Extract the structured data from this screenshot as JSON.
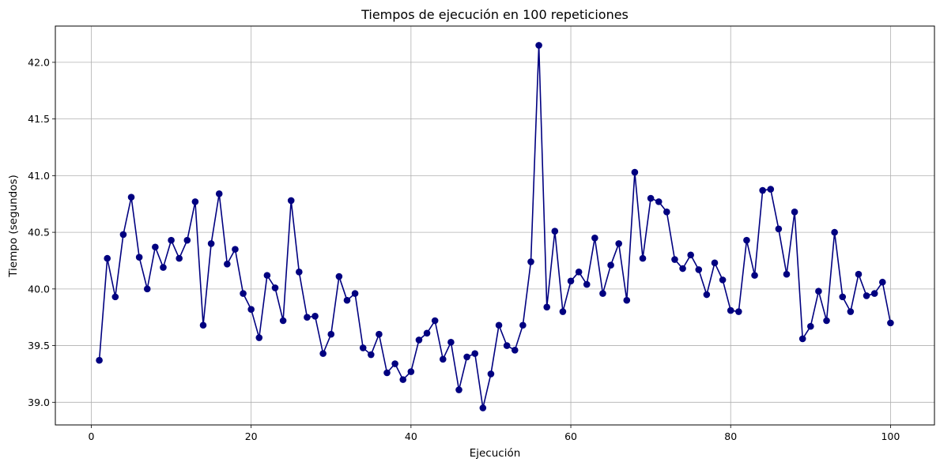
{
  "chart_data": {
    "type": "line",
    "title": "Tiempos de ejecución en 100 repeticiones",
    "xlabel": "Ejecución",
    "ylabel": "Tiempo (segundos)",
    "xlim": [
      -4.5,
      105.5
    ],
    "ylim": [
      38.8,
      42.32
    ],
    "xticks": [
      0,
      20,
      40,
      60,
      80,
      100
    ],
    "yticks": [
      39.0,
      39.5,
      40.0,
      40.5,
      41.0,
      41.5,
      42.0
    ],
    "xtick_labels": [
      "0",
      "20",
      "40",
      "60",
      "80",
      "100"
    ],
    "ytick_labels": [
      "39.0",
      "39.5",
      "40.0",
      "40.5",
      "41.0",
      "41.5",
      "42.0"
    ],
    "grid": true,
    "marker": "circle",
    "color": "#000080",
    "series": [
      {
        "x": [
          1,
          2,
          3,
          4,
          5,
          6,
          7,
          8,
          9,
          10,
          11,
          12,
          13,
          14,
          15,
          16,
          17,
          18,
          19,
          20,
          21,
          22,
          23,
          24,
          25,
          26,
          27,
          28,
          29,
          30,
          31,
          32,
          33,
          34,
          35,
          36,
          37,
          38,
          39,
          40,
          41,
          42,
          43,
          44,
          45,
          46,
          47,
          48,
          49,
          50,
          51,
          52,
          53,
          54,
          55,
          56,
          57,
          58,
          59,
          60,
          61,
          62,
          63,
          64,
          65,
          66,
          67,
          68,
          69,
          70,
          71,
          72,
          73,
          74,
          75,
          76,
          77,
          78,
          79,
          80,
          81,
          82,
          83,
          84,
          85,
          86,
          87,
          88,
          89,
          90,
          91,
          92,
          93,
          94,
          95,
          96,
          97,
          98,
          99,
          100
        ],
        "values": [
          39.37,
          40.27,
          39.93,
          40.48,
          40.81,
          40.28,
          40.0,
          40.37,
          40.19,
          40.43,
          40.27,
          40.43,
          40.77,
          39.68,
          40.4,
          40.84,
          40.22,
          40.35,
          39.96,
          39.82,
          39.57,
          40.12,
          40.01,
          39.72,
          40.78,
          40.15,
          39.75,
          39.76,
          39.43,
          39.6,
          40.11,
          39.9,
          39.96,
          39.48,
          39.42,
          39.6,
          39.26,
          39.34,
          39.2,
          39.27,
          39.55,
          39.61,
          39.72,
          39.38,
          39.53,
          39.11,
          39.4,
          39.43,
          38.95,
          39.25,
          39.68,
          39.5,
          39.46,
          39.68,
          40.24,
          42.15,
          39.84,
          40.51,
          39.8,
          40.07,
          40.15,
          40.04,
          40.45,
          39.96,
          40.21,
          40.4,
          39.9,
          41.03,
          40.27,
          40.8,
          40.77,
          40.68,
          40.26,
          40.18,
          40.3,
          40.17,
          39.95,
          40.23,
          40.08,
          39.81,
          39.8,
          40.43,
          40.12,
          40.87,
          40.88,
          40.53,
          40.13,
          40.68,
          39.56,
          39.67,
          39.98,
          39.72,
          40.5,
          39.93,
          39.8,
          40.13,
          39.94,
          39.96,
          40.06,
          39.7
        ]
      }
    ]
  }
}
